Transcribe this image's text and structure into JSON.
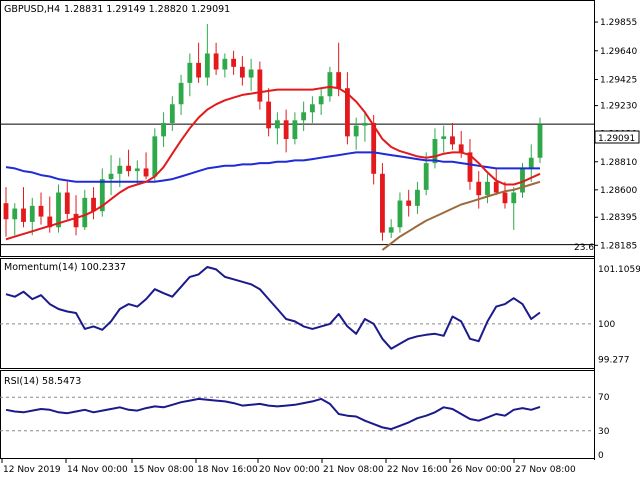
{
  "chart_data": [
    {
      "type": "candlestick",
      "title": "GBPUSD,H4",
      "ohlc_label": "1.28831 1.29149 1.28820 1.29091",
      "last_price_label": "1.29091",
      "last_price": 1.29091,
      "ylim": [
        1.2812,
        1.2999
      ],
      "y_ticks": [
        "1.29855",
        "1.29640",
        "1.29425",
        "1.29230",
        "1.29020",
        "1.28810",
        "1.28600",
        "1.28395",
        "1.28185"
      ],
      "x_ticks": [
        "12 Nov 2019",
        "14 Nov 00:00",
        "15 Nov 08:00",
        "18 Nov 16:00",
        "20 Nov 00:00",
        "21 Nov 08:00",
        "22 Nov 16:00",
        "26 Nov 00:00",
        "27 Nov 08:00"
      ],
      "fib_label": "23.6",
      "fib_level": 1.2819,
      "colors": {
        "bull": "#2fa84a",
        "bear": "#e3191c",
        "sma_fast": "#e3191c",
        "sma_mid": "#1f2bd6",
        "sma_slow": "#9c6a3c",
        "price_line": "#000000"
      },
      "candles": [
        [
          1.285,
          1.2862,
          1.2825,
          1.2838
        ],
        [
          1.2838,
          1.285,
          1.2826,
          1.2846
        ],
        [
          1.2846,
          1.2862,
          1.2832,
          1.2836
        ],
        [
          1.2836,
          1.2854,
          1.2826,
          1.2848
        ],
        [
          1.2848,
          1.2858,
          1.2834,
          1.284
        ],
        [
          1.284,
          1.2855,
          1.2828,
          1.2832
        ],
        [
          1.2832,
          1.2864,
          1.2828,
          1.2858
        ],
        [
          1.2858,
          1.2866,
          1.2838,
          1.2842
        ],
        [
          1.2842,
          1.2856,
          1.2826,
          1.2832
        ],
        [
          1.2832,
          1.286,
          1.283,
          1.2854
        ],
        [
          1.2854,
          1.2862,
          1.2838,
          1.2844
        ],
        [
          1.2844,
          1.2876,
          1.284,
          1.2868
        ],
        [
          1.2868,
          1.2886,
          1.2856,
          1.2872
        ],
        [
          1.2872,
          1.2884,
          1.2862,
          1.2878
        ],
        [
          1.2878,
          1.289,
          1.287,
          1.2874
        ],
        [
          1.2874,
          1.2882,
          1.2864,
          1.2876
        ],
        [
          1.2876,
          1.2888,
          1.2868,
          1.287
        ],
        [
          1.287,
          1.2906,
          1.2866,
          1.29
        ],
        [
          1.29,
          1.2918,
          1.2892,
          1.291
        ],
        [
          1.291,
          1.293,
          1.2904,
          1.2924
        ],
        [
          1.2924,
          1.2946,
          1.2916,
          1.294
        ],
        [
          1.294,
          1.2962,
          1.293,
          1.2955
        ],
        [
          1.2955,
          1.297,
          1.294,
          1.2944
        ],
        [
          1.2944,
          1.2984,
          1.2938,
          1.2962
        ],
        [
          1.2962,
          1.297,
          1.2946,
          1.295
        ],
        [
          1.295,
          1.2962,
          1.2944,
          1.2958
        ],
        [
          1.2958,
          1.2964,
          1.2946,
          1.2952
        ],
        [
          1.2952,
          1.296,
          1.2938,
          1.2944
        ],
        [
          1.2944,
          1.2958,
          1.2934,
          1.295
        ],
        [
          1.295,
          1.2956,
          1.292,
          1.2926
        ],
        [
          1.2926,
          1.2936,
          1.29,
          1.2906
        ],
        [
          1.2906,
          1.2918,
          1.2894,
          1.2912
        ],
        [
          1.2912,
          1.292,
          1.2888,
          1.2898
        ],
        [
          1.2898,
          1.2918,
          1.2894,
          1.2912
        ],
        [
          1.2912,
          1.2926,
          1.2904,
          1.2918
        ],
        [
          1.2918,
          1.293,
          1.291,
          1.2924
        ],
        [
          1.2924,
          1.2936,
          1.2916,
          1.293
        ],
        [
          1.293,
          1.2952,
          1.2926,
          1.2948
        ],
        [
          1.2948,
          1.297,
          1.293,
          1.2936
        ],
        [
          1.2936,
          1.2948,
          1.2894,
          1.29
        ],
        [
          1.29,
          1.2914,
          1.289,
          1.2908
        ],
        [
          1.2908,
          1.2918,
          1.2896,
          1.291
        ],
        [
          1.291,
          1.2916,
          1.2864,
          1.2872
        ],
        [
          1.2872,
          1.288,
          1.2822,
          1.2828
        ],
        [
          1.2828,
          1.2838,
          1.2824,
          1.2832
        ],
        [
          1.2832,
          1.2858,
          1.2828,
          1.2852
        ],
        [
          1.2852,
          1.286,
          1.284,
          1.2848
        ],
        [
          1.2848,
          1.2866,
          1.2842,
          1.286
        ],
        [
          1.286,
          1.2888,
          1.2856,
          1.288
        ],
        [
          1.288,
          1.2906,
          1.2876,
          1.2898
        ],
        [
          1.2898,
          1.2908,
          1.2888,
          1.29
        ],
        [
          1.29,
          1.291,
          1.289,
          1.2894
        ],
        [
          1.2894,
          1.2904,
          1.2884,
          1.2888
        ],
        [
          1.2888,
          1.2898,
          1.286,
          1.2866
        ],
        [
          1.2866,
          1.2874,
          1.2846,
          1.2856
        ],
        [
          1.2856,
          1.2872,
          1.285,
          1.2866
        ],
        [
          1.2866,
          1.2876,
          1.2856,
          1.2858
        ],
        [
          1.2858,
          1.2866,
          1.2846,
          1.285
        ],
        [
          1.285,
          1.2862,
          1.283,
          1.2858
        ],
        [
          1.2858,
          1.288,
          1.2854,
          1.2876
        ],
        [
          1.2876,
          1.2894,
          1.2866,
          1.2884
        ],
        [
          1.2884,
          1.2914,
          1.288,
          1.2909
        ]
      ],
      "sma_fast": [
        1.2823,
        1.2825,
        1.2827,
        1.2829,
        1.2831,
        1.2833,
        1.2835,
        1.2837,
        1.2839,
        1.2841,
        1.2844,
        1.2848,
        1.2853,
        1.2858,
        1.2862,
        1.2864,
        1.2866,
        1.287,
        1.2877,
        1.2887,
        1.2897,
        1.2906,
        1.2914,
        1.292,
        1.2924,
        1.2927,
        1.2929,
        1.2931,
        1.2932,
        1.2933,
        1.2934,
        1.2935,
        1.2935,
        1.2935,
        1.2935,
        1.2935,
        1.2936,
        1.2937,
        1.2936,
        1.2932,
        1.2926,
        1.2918,
        1.2908,
        1.2898,
        1.2892,
        1.2889,
        1.2887,
        1.2885,
        1.2884,
        1.2885,
        1.2887,
        1.2888,
        1.2888,
        1.2886,
        1.288,
        1.2873,
        1.2867,
        1.2864,
        1.2864,
        1.2866,
        1.2869,
        1.2872
      ],
      "sma_mid": [
        1.2877,
        1.2876,
        1.2874,
        1.2873,
        1.2871,
        1.287,
        1.2868,
        1.2867,
        1.2866,
        1.2866,
        1.2866,
        1.2866,
        1.2866,
        1.2866,
        1.2866,
        1.2866,
        1.2866,
        1.2866,
        1.2867,
        1.2868,
        1.287,
        1.2872,
        1.2874,
        1.2876,
        1.2877,
        1.2878,
        1.2878,
        1.2879,
        1.2879,
        1.288,
        1.288,
        1.2881,
        1.2881,
        1.2882,
        1.2882,
        1.2883,
        1.2884,
        1.2885,
        1.2886,
        1.2887,
        1.2888,
        1.2888,
        1.2888,
        1.2887,
        1.2886,
        1.2885,
        1.2884,
        1.2883,
        1.2882,
        1.2882,
        1.2881,
        1.2881,
        1.288,
        1.2879,
        1.2878,
        1.2877,
        1.2876,
        1.2876,
        1.2876,
        1.2876,
        1.2876,
        1.2876
      ],
      "sma_slow": [
        null,
        null,
        null,
        null,
        null,
        null,
        null,
        null,
        null,
        null,
        null,
        null,
        null,
        null,
        null,
        null,
        null,
        null,
        null,
        null,
        null,
        null,
        null,
        null,
        null,
        null,
        null,
        null,
        null,
        null,
        null,
        null,
        null,
        null,
        null,
        null,
        null,
        null,
        null,
        null,
        null,
        null,
        null,
        1.2815,
        1.282,
        1.2825,
        1.2829,
        1.2833,
        1.2837,
        1.284,
        1.2843,
        1.2846,
        1.2849,
        1.2851,
        1.2853,
        1.2855,
        1.2857,
        1.2859,
        1.286,
        1.2862,
        1.2864,
        1.2866
      ]
    },
    {
      "type": "line",
      "title": "Momentum(14) 100.2337",
      "ylim": [
        99.15,
        101.25
      ],
      "y_ticks": [
        "101.1059",
        "100",
        "99.277"
      ],
      "reference_level": 100,
      "colors": {
        "line": "#1a1a8c",
        "ref": "#888888"
      },
      "values": [
        100.6,
        100.55,
        100.65,
        100.5,
        100.58,
        100.4,
        100.3,
        100.25,
        100.22,
        99.9,
        99.95,
        99.88,
        100.05,
        100.3,
        100.4,
        100.35,
        100.5,
        100.7,
        100.62,
        100.55,
        100.75,
        100.95,
        101.0,
        101.15,
        101.1,
        100.95,
        100.9,
        100.85,
        100.8,
        100.7,
        100.5,
        100.3,
        100.1,
        100.05,
        99.95,
        99.9,
        99.95,
        100.0,
        100.2,
        99.95,
        99.8,
        100.1,
        100.0,
        99.7,
        99.5,
        99.6,
        99.7,
        99.75,
        99.78,
        99.8,
        99.76,
        100.15,
        100.05,
        99.7,
        99.65,
        100.05,
        100.35,
        100.4,
        100.52,
        100.4,
        100.1,
        100.23
      ]
    },
    {
      "type": "line",
      "title": "RSI(14) 58.5473",
      "ylim": [
        0,
        100
      ],
      "y_ticks": [
        "70",
        "30",
        "0"
      ],
      "levels": [
        70,
        30
      ],
      "colors": {
        "line": "#1a1a8c",
        "ref": "#888888"
      },
      "values": [
        55,
        53,
        52,
        54,
        56,
        55,
        52,
        51,
        53,
        55,
        52,
        54,
        56,
        58,
        55,
        54,
        57,
        59,
        58,
        61,
        64,
        66,
        68,
        67,
        66,
        65,
        63,
        60,
        61,
        62,
        60,
        59,
        60,
        61,
        63,
        65,
        68,
        62,
        50,
        48,
        47,
        42,
        38,
        34,
        32,
        36,
        40,
        45,
        48,
        52,
        58,
        56,
        50,
        44,
        42,
        46,
        50,
        48,
        55,
        57,
        55,
        58.5
      ]
    }
  ]
}
